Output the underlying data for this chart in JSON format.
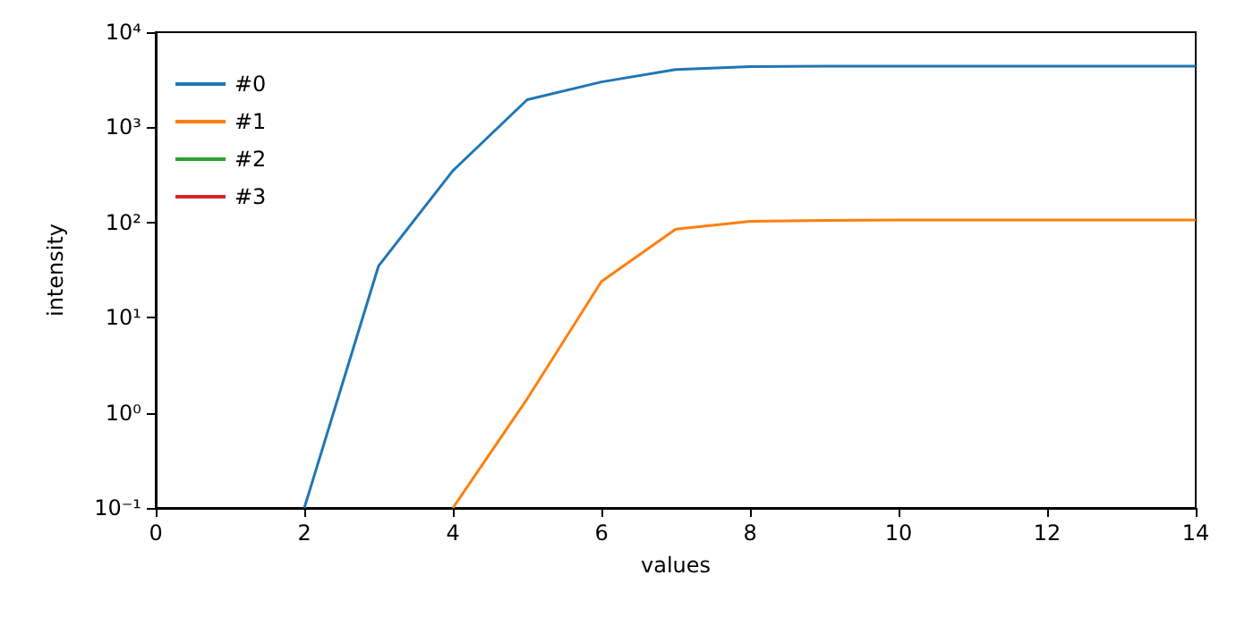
{
  "chart_data": {
    "type": "line",
    "xlabel": "values",
    "ylabel": "intensity",
    "x": [
      2,
      3,
      4,
      5,
      6,
      7,
      8,
      9,
      10,
      11,
      12,
      13,
      14
    ],
    "series": [
      {
        "name": "#0",
        "color": "#1f77b4",
        "values": [
          0.1,
          35,
          350,
          1950,
          3000,
          4050,
          4350,
          4400,
          4400,
          4400,
          4400,
          4400,
          4400
        ]
      },
      {
        "name": "#1",
        "color": "#ff7f0e",
        "values": [
          null,
          null,
          0.1,
          1.4,
          24,
          85,
          103,
          105,
          106,
          106,
          106,
          106,
          106
        ]
      },
      {
        "name": "#2",
        "color": "#2ca02c",
        "values": [
          null,
          null,
          null,
          null,
          null,
          null,
          null,
          null,
          null,
          null,
          null,
          null,
          null
        ]
      },
      {
        "name": "#3",
        "color": "#d62728",
        "values": [
          null,
          null,
          null,
          null,
          null,
          null,
          null,
          null,
          null,
          null,
          null,
          null,
          null
        ]
      }
    ],
    "log": "y",
    "xlim": [
      0,
      14
    ],
    "xticks": [
      0,
      2,
      4,
      6,
      8,
      10,
      12,
      14
    ],
    "ylim": [
      0.1,
      10000
    ],
    "yticks": [
      {
        "value": 0.1,
        "label": "10⁻¹"
      },
      {
        "value": 1,
        "label": "10⁰"
      },
      {
        "value": 10,
        "label": "10¹"
      },
      {
        "value": 100,
        "label": "10²"
      },
      {
        "value": 1000,
        "label": "10³"
      },
      {
        "value": 10000,
        "label": "10⁴"
      }
    ],
    "grid": false,
    "legend": "top left",
    "marker": "none",
    "line_style": "solid"
  }
}
